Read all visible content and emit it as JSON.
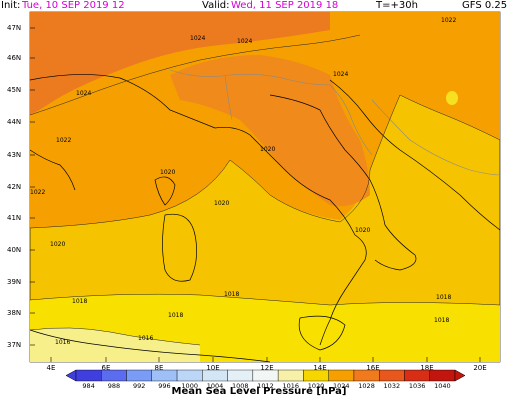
{
  "header": {
    "init_label": "Init:",
    "init_value": "Tue, 10 SEP 2019  12",
    "valid_label": "Valid:",
    "valid_value": "Wed, 11 SEP 2019  18",
    "step": "T=+30h",
    "model": "GFS 0.25"
  },
  "lat_labels": [
    "47N",
    "46N",
    "45N",
    "44N",
    "43N",
    "42N",
    "41N",
    "40N",
    "39N",
    "38N",
    "37N"
  ],
  "lon_labels": [
    "4E",
    "6E",
    "8E",
    "10E",
    "12E",
    "14E",
    "16E",
    "18E",
    "20E"
  ],
  "isobar_labels": [
    "1024",
    "1024",
    "1024",
    "1024",
    "1022",
    "1022",
    "1020",
    "1020",
    "1020",
    "1020",
    "1020",
    "1022",
    "1018",
    "1018",
    "1018",
    "1018",
    "1018",
    "1016",
    "1016"
  ],
  "colorbar": {
    "title": "Mean Sea Level Pressure [hPa]",
    "levels": [
      "984",
      "988",
      "992",
      "996",
      "1000",
      "1004",
      "1008",
      "1012",
      "1016",
      "1020",
      "1024",
      "1028",
      "1032",
      "1036",
      "1040"
    ],
    "colors": [
      "#3f3fe0",
      "#5c6cf0",
      "#7a9cf7",
      "#9fbff8",
      "#bcd6f7",
      "#d4e6f6",
      "#e5f0f6",
      "#f2f7f5",
      "#f6f0a8",
      "#f7d600",
      "#f5a000",
      "#f07a1c",
      "#e8571b",
      "#d82e16",
      "#c2150e"
    ]
  }
}
